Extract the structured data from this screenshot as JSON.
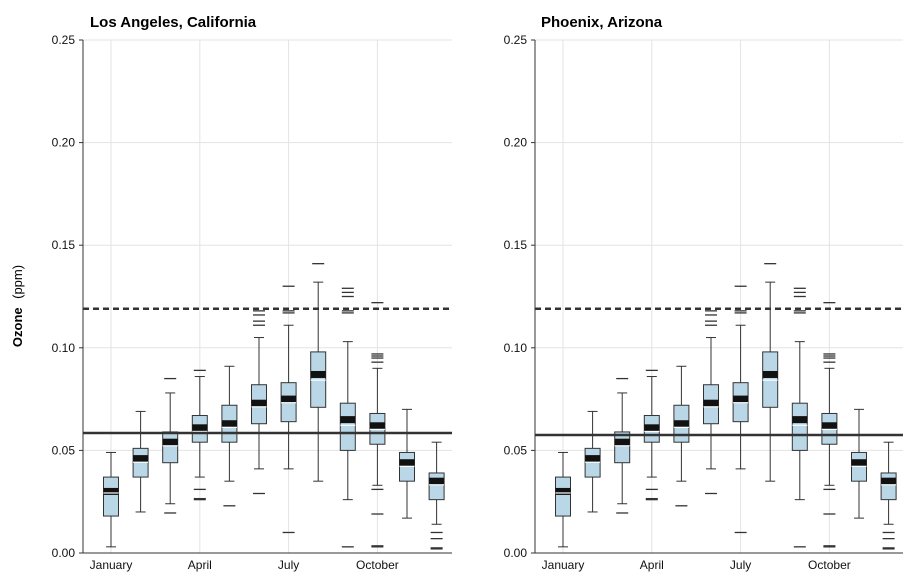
{
  "y_axis_label": {
    "bold": "Ozone",
    "unit": "(ppm)"
  },
  "colors": {
    "box_fill": "#b9d7e6",
    "box_stroke": "#333333",
    "grid": "#e3e3e3",
    "axis": "#333333",
    "median": "#111111",
    "mean": "#ffffff",
    "reference_line": "#333333"
  },
  "chart_data": [
    {
      "type": "box",
      "title": "Los Angeles, California",
      "xlabel": "",
      "ylabel": "Ozone (ppm)",
      "ylim": [
        0,
        0.25
      ],
      "yticks": [
        "0.00",
        "0.05",
        "0.10",
        "0.15",
        "0.20",
        "0.25"
      ],
      "ytick_values": [
        0,
        0.05,
        0.1,
        0.15,
        0.2,
        0.25
      ],
      "grid": true,
      "xtick_labels": [
        {
          "label": "January",
          "month": 1
        },
        {
          "label": "April",
          "month": 4
        },
        {
          "label": "July",
          "month": 7
        },
        {
          "label": "October",
          "month": 10
        }
      ],
      "solid_line": 0.0585,
      "dashed_line": 0.119,
      "boxes": [
        {
          "month": 1,
          "whisker_low": 0.003,
          "q1": 0.018,
          "median": 0.03,
          "mean": 0.029,
          "q3": 0.037,
          "whisker_high": 0.049,
          "outliers": []
        },
        {
          "month": 2,
          "whisker_low": 0.02,
          "q1": 0.037,
          "median": 0.046,
          "mean": 0.044,
          "q3": 0.051,
          "whisker_high": 0.069,
          "outliers": []
        },
        {
          "month": 3,
          "whisker_low": 0.024,
          "q1": 0.044,
          "median": 0.054,
          "mean": 0.052,
          "q3": 0.059,
          "whisker_high": 0.078,
          "outliers": [
            0.0195,
            0.085
          ]
        },
        {
          "month": 4,
          "whisker_low": 0.037,
          "q1": 0.054,
          "median": 0.061,
          "mean": 0.059,
          "q3": 0.067,
          "whisker_high": 0.086,
          "outliers": [
            0.026,
            0.0265,
            0.031,
            0.089
          ]
        },
        {
          "month": 5,
          "whisker_low": 0.035,
          "q1": 0.054,
          "median": 0.063,
          "mean": 0.061,
          "q3": 0.072,
          "whisker_high": 0.091,
          "outliers": [
            0.023
          ]
        },
        {
          "month": 6,
          "whisker_low": 0.041,
          "q1": 0.063,
          "median": 0.073,
          "mean": 0.071,
          "q3": 0.082,
          "whisker_high": 0.105,
          "outliers": [
            0.029,
            0.111,
            0.113,
            0.116,
            0.118
          ]
        },
        {
          "month": 7,
          "whisker_low": 0.041,
          "q1": 0.064,
          "median": 0.075,
          "mean": 0.073,
          "q3": 0.083,
          "whisker_high": 0.111,
          "outliers": [
            0.01,
            0.117,
            0.118,
            0.13
          ]
        },
        {
          "month": 8,
          "whisker_low": 0.035,
          "q1": 0.071,
          "median": 0.087,
          "mean": 0.084,
          "q3": 0.098,
          "whisker_high": 0.132,
          "outliers": [
            0.141
          ]
        },
        {
          "month": 9,
          "whisker_low": 0.026,
          "q1": 0.05,
          "median": 0.065,
          "mean": 0.062,
          "q3": 0.073,
          "whisker_high": 0.103,
          "outliers": [
            0.003,
            0.117,
            0.118,
            0.125,
            0.127,
            0.129
          ]
        },
        {
          "month": 10,
          "whisker_low": 0.033,
          "q1": 0.053,
          "median": 0.062,
          "mean": 0.06,
          "q3": 0.068,
          "whisker_high": 0.09,
          "outliers": [
            0.003,
            0.0035,
            0.019,
            0.031,
            0.093,
            0.095,
            0.096,
            0.097,
            0.122
          ]
        },
        {
          "month": 11,
          "whisker_low": 0.017,
          "q1": 0.035,
          "median": 0.044,
          "mean": 0.042,
          "q3": 0.049,
          "whisker_high": 0.07,
          "outliers": []
        },
        {
          "month": 12,
          "whisker_low": 0.014,
          "q1": 0.026,
          "median": 0.035,
          "mean": 0.033,
          "q3": 0.039,
          "whisker_high": 0.054,
          "outliers": [
            0.002,
            0.0025,
            0.007,
            0.01
          ]
        }
      ]
    },
    {
      "type": "box",
      "title": "Phoenix, Arizona",
      "xlabel": "",
      "ylabel": "",
      "ylim": [
        0,
        0.25
      ],
      "yticks": [
        "0.00",
        "0.05",
        "0.10",
        "0.15",
        "0.20",
        "0.25"
      ],
      "ytick_values": [
        0,
        0.05,
        0.1,
        0.15,
        0.2,
        0.25
      ],
      "grid": true,
      "xtick_labels": [
        {
          "label": "January",
          "month": 1
        },
        {
          "label": "April",
          "month": 4
        },
        {
          "label": "July",
          "month": 7
        },
        {
          "label": "October",
          "month": 10
        }
      ],
      "solid_line": 0.0575,
      "dashed_line": 0.119,
      "boxes": [
        {
          "month": 1,
          "whisker_low": 0.003,
          "q1": 0.018,
          "median": 0.03,
          "mean": 0.029,
          "q3": 0.037,
          "whisker_high": 0.049,
          "outliers": []
        },
        {
          "month": 2,
          "whisker_low": 0.02,
          "q1": 0.037,
          "median": 0.046,
          "mean": 0.044,
          "q3": 0.051,
          "whisker_high": 0.069,
          "outliers": []
        },
        {
          "month": 3,
          "whisker_low": 0.024,
          "q1": 0.044,
          "median": 0.054,
          "mean": 0.052,
          "q3": 0.059,
          "whisker_high": 0.078,
          "outliers": [
            0.0195,
            0.085
          ]
        },
        {
          "month": 4,
          "whisker_low": 0.037,
          "q1": 0.054,
          "median": 0.061,
          "mean": 0.059,
          "q3": 0.067,
          "whisker_high": 0.086,
          "outliers": [
            0.026,
            0.0265,
            0.031,
            0.089
          ]
        },
        {
          "month": 5,
          "whisker_low": 0.035,
          "q1": 0.054,
          "median": 0.063,
          "mean": 0.061,
          "q3": 0.072,
          "whisker_high": 0.091,
          "outliers": [
            0.023
          ]
        },
        {
          "month": 6,
          "whisker_low": 0.041,
          "q1": 0.063,
          "median": 0.073,
          "mean": 0.071,
          "q3": 0.082,
          "whisker_high": 0.105,
          "outliers": [
            0.029,
            0.111,
            0.113,
            0.116,
            0.118
          ]
        },
        {
          "month": 7,
          "whisker_low": 0.041,
          "q1": 0.064,
          "median": 0.075,
          "mean": 0.073,
          "q3": 0.083,
          "whisker_high": 0.111,
          "outliers": [
            0.01,
            0.117,
            0.118,
            0.13
          ]
        },
        {
          "month": 8,
          "whisker_low": 0.035,
          "q1": 0.071,
          "median": 0.087,
          "mean": 0.084,
          "q3": 0.098,
          "whisker_high": 0.132,
          "outliers": [
            0.141
          ]
        },
        {
          "month": 9,
          "whisker_low": 0.026,
          "q1": 0.05,
          "median": 0.065,
          "mean": 0.062,
          "q3": 0.073,
          "whisker_high": 0.103,
          "outliers": [
            0.003,
            0.117,
            0.118,
            0.125,
            0.127,
            0.129
          ]
        },
        {
          "month": 10,
          "whisker_low": 0.033,
          "q1": 0.053,
          "median": 0.062,
          "mean": 0.06,
          "q3": 0.068,
          "whisker_high": 0.09,
          "outliers": [
            0.003,
            0.0035,
            0.019,
            0.031,
            0.093,
            0.095,
            0.096,
            0.097,
            0.122
          ]
        },
        {
          "month": 11,
          "whisker_low": 0.017,
          "q1": 0.035,
          "median": 0.044,
          "mean": 0.042,
          "q3": 0.049,
          "whisker_high": 0.07,
          "outliers": []
        },
        {
          "month": 12,
          "whisker_low": 0.014,
          "q1": 0.026,
          "median": 0.035,
          "mean": 0.033,
          "q3": 0.039,
          "whisker_high": 0.054,
          "outliers": [
            0.002,
            0.0025,
            0.007,
            0.01
          ]
        }
      ]
    }
  ]
}
